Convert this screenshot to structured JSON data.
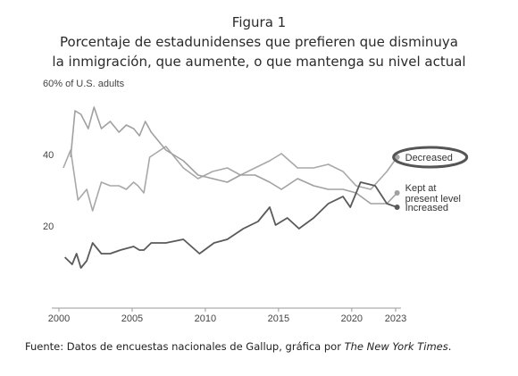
{
  "figure": {
    "number_label": "Figura 1",
    "title_line1": "Porcentaje de estadunidenses que prefieren que disminuya",
    "title_line2": "la inmigración, que aumente, o que mantenga su nivel actual",
    "source_prefix": "Fuente: Datos de encuestas nacionales de Gallup, gráfica por ",
    "source_publication": "The New York Times",
    "source_suffix": "."
  },
  "chart_data": {
    "type": "line",
    "title": "",
    "xlabel": "",
    "ylabel": "",
    "ylim": [
      0,
      60
    ],
    "xlim": [
      2000,
      2023
    ],
    "y_ticks": [
      {
        "value": 60,
        "label": "60% of U.S. adults"
      },
      {
        "value": 40,
        "label": "40"
      },
      {
        "value": 20,
        "label": "20"
      }
    ],
    "x_ticks": [
      {
        "value": 2000,
        "label": "2000"
      },
      {
        "value": 2005,
        "label": "2005"
      },
      {
        "value": 2010,
        "label": "2010"
      },
      {
        "value": 2015,
        "label": "2015"
      },
      {
        "value": 2020,
        "label": "2020"
      },
      {
        "value": 2023,
        "label": "2023"
      }
    ],
    "grid": false,
    "series": [
      {
        "name": "Decreased",
        "label_lines": [
          "Decreased"
        ],
        "color": "#a8a8a8",
        "stroke_width": 1.6,
        "highlighted": true,
        "points": [
          [
            2000.3,
            38
          ],
          [
            2000.8,
            43
          ],
          [
            2001.3,
            29
          ],
          [
            2001.9,
            32
          ],
          [
            2002.3,
            26
          ],
          [
            2002.9,
            34
          ],
          [
            2003.5,
            33
          ],
          [
            2004.1,
            33
          ],
          [
            2004.6,
            32
          ],
          [
            2005.1,
            34
          ],
          [
            2005.4,
            33
          ],
          [
            2005.8,
            31
          ],
          [
            2006.2,
            41
          ],
          [
            2007.3,
            44
          ],
          [
            2008.5,
            38
          ],
          [
            2009.5,
            35
          ],
          [
            2010.5,
            37
          ],
          [
            2011.5,
            38
          ],
          [
            2012.4,
            36
          ],
          [
            2013.4,
            38
          ],
          [
            2014.4,
            40
          ],
          [
            2015.2,
            42
          ],
          [
            2016.3,
            38
          ],
          [
            2017.4,
            38
          ],
          [
            2018.4,
            39
          ],
          [
            2019.4,
            37
          ],
          [
            2020.3,
            33
          ],
          [
            2021.3,
            32
          ],
          [
            2022.4,
            37
          ],
          [
            2023.1,
            41
          ]
        ]
      },
      {
        "name": "Kept at present level",
        "label_lines": [
          "Kept at",
          "present level"
        ],
        "color": "#a0a0a0",
        "stroke_width": 1.6,
        "highlighted": false,
        "points": [
          [
            2000.8,
            41
          ],
          [
            2001.1,
            54
          ],
          [
            2001.5,
            53
          ],
          [
            2002.0,
            49
          ],
          [
            2002.4,
            55
          ],
          [
            2002.9,
            49
          ],
          [
            2003.5,
            51
          ],
          [
            2004.1,
            48
          ],
          [
            2004.6,
            50
          ],
          [
            2005.1,
            49
          ],
          [
            2005.5,
            47
          ],
          [
            2005.9,
            51
          ],
          [
            2006.3,
            48
          ],
          [
            2007.3,
            43
          ],
          [
            2008.5,
            40
          ],
          [
            2009.5,
            36
          ],
          [
            2010.5,
            35
          ],
          [
            2011.5,
            34
          ],
          [
            2012.4,
            36
          ],
          [
            2013.4,
            36
          ],
          [
            2014.4,
            34
          ],
          [
            2015.2,
            32
          ],
          [
            2016.3,
            35
          ],
          [
            2017.4,
            33
          ],
          [
            2018.4,
            32
          ],
          [
            2019.4,
            32
          ],
          [
            2020.3,
            31
          ],
          [
            2021.3,
            28
          ],
          [
            2022.4,
            28
          ],
          [
            2023.1,
            31
          ]
        ]
      },
      {
        "name": "Increased",
        "label_lines": [
          "Increased"
        ],
        "color": "#5a5a5a",
        "stroke_width": 1.8,
        "highlighted": false,
        "points": [
          [
            2000.4,
            13
          ],
          [
            2000.9,
            11
          ],
          [
            2001.2,
            14
          ],
          [
            2001.5,
            10
          ],
          [
            2001.9,
            12
          ],
          [
            2002.3,
            17
          ],
          [
            2002.9,
            14
          ],
          [
            2003.5,
            14
          ],
          [
            2004.2,
            15
          ],
          [
            2005.1,
            16
          ],
          [
            2005.5,
            15
          ],
          [
            2005.8,
            15
          ],
          [
            2006.3,
            17
          ],
          [
            2007.3,
            17
          ],
          [
            2008.5,
            18
          ],
          [
            2009.6,
            14
          ],
          [
            2010.6,
            17
          ],
          [
            2011.5,
            18
          ],
          [
            2012.6,
            21
          ],
          [
            2013.6,
            23
          ],
          [
            2014.4,
            27
          ],
          [
            2014.8,
            22
          ],
          [
            2015.6,
            24
          ],
          [
            2016.4,
            21
          ],
          [
            2017.4,
            24
          ],
          [
            2018.4,
            28
          ],
          [
            2019.4,
            30
          ],
          [
            2019.9,
            27
          ],
          [
            2020.6,
            34
          ],
          [
            2021.6,
            33
          ],
          [
            2022.4,
            28
          ],
          [
            2023.1,
            27
          ]
        ]
      }
    ]
  }
}
